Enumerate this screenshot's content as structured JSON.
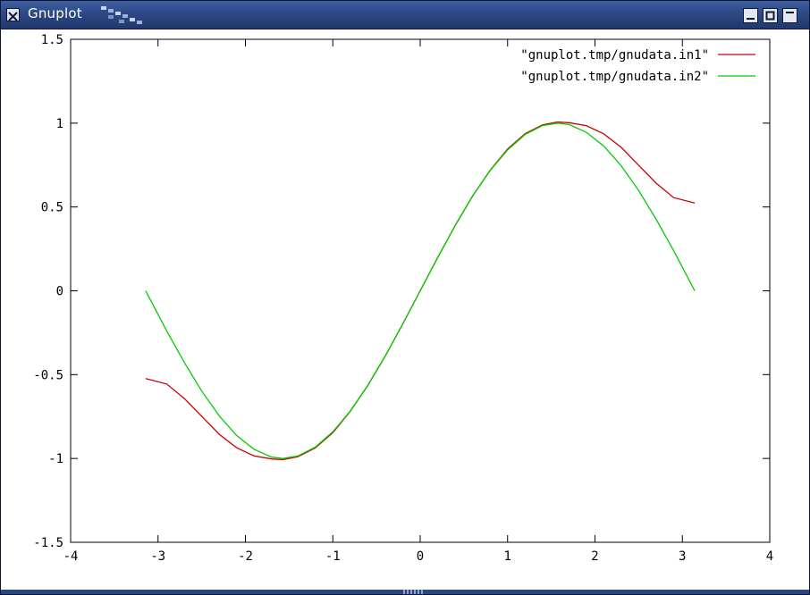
{
  "window": {
    "title": "Gnuplot",
    "icon": "close-x-icon",
    "controls": [
      "minimize-icon",
      "maximize-icon",
      "shade-icon"
    ]
  },
  "chart_data": {
    "type": "line",
    "title": "",
    "xlabel": "",
    "ylabel": "",
    "xlim": [
      -4,
      4
    ],
    "ylim": [
      -1.5,
      1.5
    ],
    "x_ticks": [
      "-4",
      "-3",
      "-2",
      "-1",
      "0",
      "1",
      "2",
      "3",
      "4"
    ],
    "y_ticks": [
      "-1.5",
      "-1",
      "-0.5",
      "0",
      "0.5",
      "1",
      "1.5"
    ],
    "grid": false,
    "legend_position": "top-right",
    "series": [
      {
        "name": "\"gnuplot.tmp/gnudata.in1\"",
        "color": "#cc0000",
        "x": [
          -3.14159,
          -2.9,
          -2.7,
          -2.5,
          -2.3,
          -2.1,
          -1.9,
          -1.7,
          -1.5708,
          -1.4,
          -1.2,
          -1.0,
          -0.8,
          -0.6,
          -0.4,
          -0.2,
          0.0,
          0.2,
          0.4,
          0.6,
          0.8,
          1.0,
          1.2,
          1.4,
          1.5708,
          1.7,
          1.9,
          2.1,
          2.3,
          2.5,
          2.7,
          2.9,
          3.14159
        ],
        "y": [
          -0.524,
          -0.556,
          -0.642,
          -0.748,
          -0.856,
          -0.936,
          -0.985,
          -1.003,
          -1.007,
          -0.99,
          -0.937,
          -0.846,
          -0.719,
          -0.566,
          -0.389,
          -0.199,
          0.0,
          0.199,
          0.389,
          0.566,
          0.719,
          0.846,
          0.937,
          0.99,
          1.007,
          1.003,
          0.985,
          0.936,
          0.856,
          0.748,
          0.642,
          0.556,
          0.524
        ]
      },
      {
        "name": "\"gnuplot.tmp/gnudata.in2\"",
        "color": "#00cc00",
        "x": [
          -3.14159,
          -2.9,
          -2.7,
          -2.5,
          -2.3,
          -2.1,
          -1.9,
          -1.7,
          -1.5708,
          -1.4,
          -1.2,
          -1.0,
          -0.8,
          -0.6,
          -0.4,
          -0.2,
          0.0,
          0.2,
          0.4,
          0.6,
          0.8,
          1.0,
          1.2,
          1.4,
          1.5708,
          1.7,
          1.9,
          2.1,
          2.3,
          2.5,
          2.7,
          2.9,
          3.14159
        ],
        "y": [
          0.0,
          -0.239,
          -0.427,
          -0.598,
          -0.746,
          -0.863,
          -0.946,
          -0.992,
          -1.0,
          -0.985,
          -0.932,
          -0.841,
          -0.717,
          -0.565,
          -0.389,
          -0.199,
          0.0,
          0.199,
          0.389,
          0.565,
          0.717,
          0.841,
          0.932,
          0.985,
          1.0,
          0.992,
          0.946,
          0.863,
          0.746,
          0.598,
          0.427,
          0.239,
          0.0
        ]
      }
    ]
  }
}
